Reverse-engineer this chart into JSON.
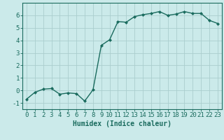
{
  "x": [
    0,
    1,
    2,
    3,
    4,
    5,
    6,
    7,
    8,
    9,
    10,
    11,
    12,
    13,
    14,
    15,
    16,
    17,
    18,
    19,
    20,
    21,
    22,
    23
  ],
  "y": [
    -0.7,
    -0.15,
    0.1,
    0.15,
    -0.3,
    -0.2,
    -0.25,
    -0.85,
    0.05,
    3.6,
    4.05,
    5.5,
    5.45,
    5.9,
    6.05,
    6.15,
    6.3,
    6.0,
    6.1,
    6.3,
    6.15,
    6.15,
    5.6,
    5.35
  ],
  "line_color": "#1a6b5e",
  "marker": "D",
  "marker_size": 2,
  "background_color": "#cbeaea",
  "grid_color": "#aacece",
  "xlabel": "Humidex (Indice chaleur)",
  "xlim": [
    -0.5,
    23.5
  ],
  "ylim": [
    -1.5,
    7.0
  ],
  "yticks": [
    -1,
    0,
    1,
    2,
    3,
    4,
    5,
    6
  ],
  "xtick_labels": [
    "0",
    "1",
    "2",
    "3",
    "4",
    "5",
    "6",
    "7",
    "8",
    "9",
    "10",
    "11",
    "12",
    "13",
    "14",
    "15",
    "16",
    "17",
    "18",
    "19",
    "20",
    "21",
    "22",
    "23"
  ],
  "xlabel_fontsize": 7,
  "tick_fontsize": 6.5,
  "line_width": 1.0
}
